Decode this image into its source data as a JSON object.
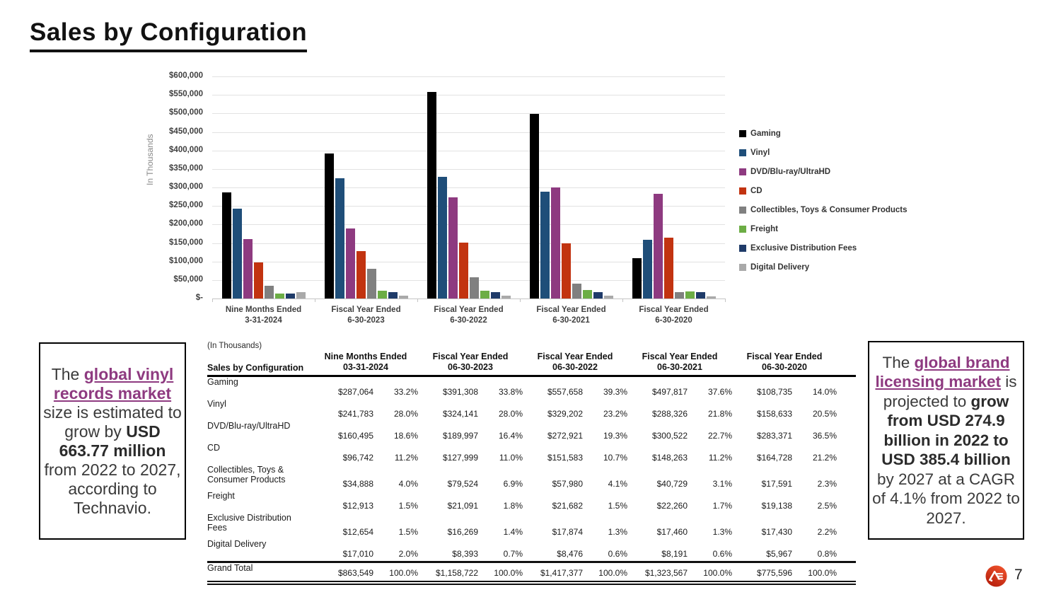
{
  "slide": {
    "title": "Sales by Configuration",
    "page_number": "7",
    "logo": "AE-logo"
  },
  "chart_data": {
    "type": "bar",
    "title": "",
    "xlabel": "",
    "ylabel": "In Thousands",
    "ylim": [
      0,
      600000
    ],
    "ytick_step": 50000,
    "ytick_labels_top_down": [
      "$600,000",
      "$550,000",
      "$500,000",
      "$450,000",
      "$400,000",
      "$350,000",
      "$300,000",
      "$250,000",
      "$200,000",
      "$150,000",
      "$100,000",
      "$50,000",
      "$-"
    ],
    "grid": true,
    "legend_position": "right",
    "categories": [
      [
        "Nine Months Ended",
        "3-31-2024"
      ],
      [
        "Fiscal Year Ended",
        "6-30-2023"
      ],
      [
        "Fiscal Year Ended",
        "6-30-2022"
      ],
      [
        "Fiscal Year Ended",
        "6-30-2021"
      ],
      [
        "Fiscal Year Ended",
        "6-30-2020"
      ]
    ],
    "series": [
      {
        "name": "Gaming",
        "color": "#000000",
        "values": [
          287064,
          391308,
          557658,
          497817,
          108735
        ]
      },
      {
        "name": "Vinyl",
        "color": "#1f4e79",
        "values": [
          241783,
          324141,
          329202,
          288326,
          158633
        ]
      },
      {
        "name": "DVD/Blu-ray/UltraHD",
        "color": "#8e3a80",
        "values": [
          160495,
          189997,
          272921,
          300522,
          283371
        ]
      },
      {
        "name": "CD",
        "color": "#c23310",
        "values": [
          96742,
          127999,
          151583,
          148263,
          164728
        ]
      },
      {
        "name": "Collectibles, Toys & Consumer Products",
        "color": "#808080",
        "values": [
          34888,
          79524,
          57980,
          40729,
          17591
        ]
      },
      {
        "name": "Freight",
        "color": "#6cad45",
        "values": [
          12913,
          21091,
          21682,
          22260,
          19138
        ]
      },
      {
        "name": "Exclusive Distribution Fees",
        "color": "#1f3b69",
        "values": [
          12654,
          16269,
          17874,
          17460,
          17430
        ]
      },
      {
        "name": "Digital Delivery",
        "color": "#a9a9a9",
        "values": [
          17010,
          8393,
          8476,
          8191,
          5967
        ]
      }
    ]
  },
  "table": {
    "units_note": "(In Thousands)",
    "row_header": "Sales by Configuration",
    "col_groups": [
      [
        "Nine Months Ended",
        "03-31-2024"
      ],
      [
        "Fiscal Year Ended",
        "06-30-2023"
      ],
      [
        "Fiscal Year Ended",
        "06-30-2022"
      ],
      [
        "Fiscal Year Ended",
        "06-30-2021"
      ],
      [
        "Fiscal Year Ended",
        "06-30-2020"
      ]
    ],
    "rows": [
      {
        "label": "Gaming",
        "two_line": false,
        "total": false,
        "cells": [
          "$287,064",
          "33.2%",
          "$391,308",
          "33.8%",
          "$557,658",
          "39.3%",
          "$497,817",
          "37.6%",
          "$108,735",
          "14.0%"
        ]
      },
      {
        "label": "Vinyl",
        "two_line": false,
        "total": false,
        "cells": [
          "$241,783",
          "28.0%",
          "$324,141",
          "28.0%",
          "$329,202",
          "23.2%",
          "$288,326",
          "21.8%",
          "$158,633",
          "20.5%"
        ]
      },
      {
        "label": "DVD/Blu-ray/UltraHD",
        "two_line": false,
        "total": false,
        "cells": [
          "$160,495",
          "18.6%",
          "$189,997",
          "16.4%",
          "$272,921",
          "19.3%",
          "$300,522",
          "22.7%",
          "$283,371",
          "36.5%"
        ]
      },
      {
        "label": "CD",
        "two_line": false,
        "total": false,
        "cells": [
          "$96,742",
          "11.2%",
          "$127,999",
          "11.0%",
          "$151,583",
          "10.7%",
          "$148,263",
          "11.2%",
          "$164,728",
          "21.2%"
        ]
      },
      {
        "label": "Collectibles, Toys &\nConsumer Products",
        "two_line": true,
        "total": false,
        "cells": [
          "$34,888",
          "4.0%",
          "$79,524",
          "6.9%",
          "$57,980",
          "4.1%",
          "$40,729",
          "3.1%",
          "$17,591",
          "2.3%"
        ]
      },
      {
        "label": "Freight",
        "two_line": false,
        "total": false,
        "cells": [
          "$12,913",
          "1.5%",
          "$21,091",
          "1.8%",
          "$21,682",
          "1.5%",
          "$22,260",
          "1.7%",
          "$19,138",
          "2.5%"
        ]
      },
      {
        "label": "Exclusive Distribution\nFees",
        "two_line": true,
        "total": false,
        "cells": [
          "$12,654",
          "1.5%",
          "$16,269",
          "1.4%",
          "$17,874",
          "1.3%",
          "$17,460",
          "1.3%",
          "$17,430",
          "2.2%"
        ]
      },
      {
        "label": "Digital Delivery",
        "two_line": false,
        "total": false,
        "cells": [
          "$17,010",
          "2.0%",
          "$8,393",
          "0.7%",
          "$8,476",
          "0.6%",
          "$8,191",
          "0.6%",
          "$5,967",
          "0.8%"
        ]
      },
      {
        "label": "Grand Total",
        "two_line": false,
        "total": true,
        "cells": [
          "$863,549",
          "100.0%",
          "$1,158,722",
          "100.0%",
          "$1,417,377",
          "100.0%",
          "$1,323,567",
          "100.0%",
          "$775,596",
          "100.0%"
        ]
      }
    ]
  },
  "callout_left": {
    "segments": [
      {
        "text": "The ",
        "style": "normal"
      },
      {
        "text": "global vinyl records market",
        "style": "link"
      },
      {
        "text": " size is estimated to grow by ",
        "style": "normal"
      },
      {
        "text": "USD 663.77 million",
        "style": "bold"
      },
      {
        "text": " from 2022 to 2027, according to Technavio.",
        "style": "normal"
      }
    ]
  },
  "callout_right": {
    "segments": [
      {
        "text": "The ",
        "style": "normal"
      },
      {
        "text": "global brand licensing market",
        "style": "link"
      },
      {
        "text": " is projected to ",
        "style": "normal"
      },
      {
        "text": "grow from USD 274.9 billion in 2022 to USD 385.4 billion",
        "style": "bold"
      },
      {
        "text": " by 2027 at a CAGR of 4.1% from 2022 to 2027.",
        "style": "normal"
      }
    ]
  },
  "colors": {
    "accent_purple": "#8e3a80",
    "logo_red_top": "#f0532d",
    "logo_red_bottom": "#b41d0b",
    "gridline": "#e2e2e2",
    "axis": "#c4c4c4"
  }
}
